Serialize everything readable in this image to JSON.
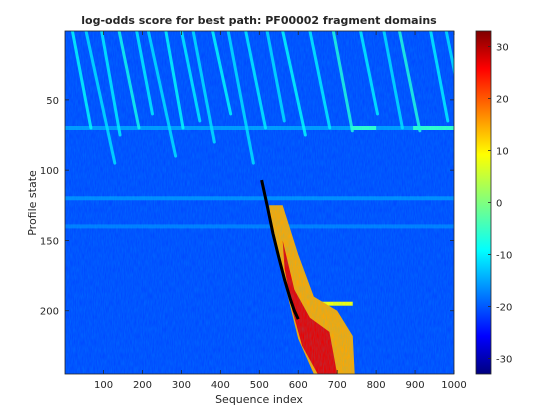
{
  "chart_data": {
    "type": "heatmap",
    "title": "log-odds score for best path: PF00002 fragment domains",
    "xlabel": "Sequence index",
    "ylabel": "Profile state",
    "xlim": [
      1,
      1000
    ],
    "ylim": [
      1,
      245
    ],
    "y_reversed": true,
    "xticks": [
      100,
      200,
      300,
      400,
      500,
      600,
      700,
      800,
      900,
      1000
    ],
    "yticks": [
      50,
      100,
      150,
      200
    ],
    "colorbar": {
      "ticks": [
        -30,
        -20,
        -10,
        0,
        10,
        20,
        30
      ],
      "range": [
        -33,
        33
      ],
      "colormap": "jet"
    },
    "background_level": -20,
    "diagonal_bands": [
      {
        "x_at_top": 20,
        "slope": 0.14,
        "y_end": 70,
        "level": -8
      },
      {
        "x_at_top": 55,
        "slope": 0.16,
        "y_end": 95,
        "level": -10
      },
      {
        "x_at_top": 95,
        "slope": 0.13,
        "y_end": 75,
        "level": -9
      },
      {
        "x_at_top": 140,
        "slope": 0.15,
        "y_end": 70,
        "level": -7
      },
      {
        "x_at_top": 185,
        "slope": 0.14,
        "y_end": 60,
        "level": -9
      },
      {
        "x_at_top": 215,
        "slope": 0.16,
        "y_end": 90,
        "level": -10
      },
      {
        "x_at_top": 260,
        "slope": 0.13,
        "y_end": 70,
        "level": -8
      },
      {
        "x_at_top": 300,
        "slope": 0.15,
        "y_end": 65,
        "level": -9
      },
      {
        "x_at_top": 330,
        "slope": 0.14,
        "y_end": 80,
        "level": -10
      },
      {
        "x_at_top": 380,
        "slope": 0.16,
        "y_end": 60,
        "level": -8
      },
      {
        "x_at_top": 420,
        "slope": 0.14,
        "y_end": 95,
        "level": -10
      },
      {
        "x_at_top": 465,
        "slope": 0.15,
        "y_end": 70,
        "level": -9
      },
      {
        "x_at_top": 520,
        "slope": 0.14,
        "y_end": 65,
        "level": -10
      },
      {
        "x_at_top": 560,
        "slope": 0.16,
        "y_end": 75,
        "level": -8
      },
      {
        "x_at_top": 630,
        "slope": 0.15,
        "y_end": 70,
        "level": -9
      },
      {
        "x_at_top": 690,
        "slope": 0.14,
        "y_end": 72,
        "level": -6
      },
      {
        "x_at_top": 760,
        "slope": 0.15,
        "y_end": 60,
        "level": -9
      },
      {
        "x_at_top": 820,
        "slope": 0.14,
        "y_end": 70,
        "level": -10
      },
      {
        "x_at_top": 860,
        "slope": 0.15,
        "y_end": 72,
        "level": -6
      },
      {
        "x_at_top": 940,
        "slope": 0.14,
        "y_end": 65,
        "level": -9
      },
      {
        "x_at_top": 980,
        "slope": 0.15,
        "y_end": 70,
        "level": -10
      }
    ],
    "horizontal_bands": [
      {
        "y": 70,
        "x_from": 1,
        "x_to": 1000,
        "level": -15
      },
      {
        "y": 70,
        "x_from": 735,
        "x_to": 800,
        "level": -5
      },
      {
        "y": 70,
        "x_from": 895,
        "x_to": 1000,
        "level": -5
      },
      {
        "y": 120,
        "x_from": 1,
        "x_to": 1000,
        "level": -16
      },
      {
        "y": 140,
        "x_from": 1,
        "x_to": 1000,
        "level": -17
      },
      {
        "y": 195,
        "x_from": 600,
        "x_to": 740,
        "level": 8
      }
    ],
    "hot_region": {
      "polygon": [
        [
          525,
          125
        ],
        [
          560,
          125
        ],
        [
          600,
          160
        ],
        [
          640,
          190
        ],
        [
          700,
          200
        ],
        [
          740,
          218
        ],
        [
          745,
          245
        ],
        [
          640,
          245
        ],
        [
          600,
          220
        ],
        [
          560,
          175
        ],
        [
          535,
          145
        ]
      ],
      "level": 14,
      "core": [
        [
          560,
          150
        ],
        [
          590,
          185
        ],
        [
          630,
          205
        ],
        [
          680,
          215
        ],
        [
          700,
          245
        ],
        [
          650,
          245
        ],
        [
          610,
          225
        ],
        [
          585,
          200
        ],
        [
          565,
          170
        ]
      ],
      "core_level": 26
    },
    "best_path": {
      "x": [
        506,
        520,
        535,
        550,
        565,
        580,
        590,
        600
      ],
      "y": [
        107,
        125,
        145,
        162,
        178,
        192,
        200,
        206
      ]
    }
  }
}
